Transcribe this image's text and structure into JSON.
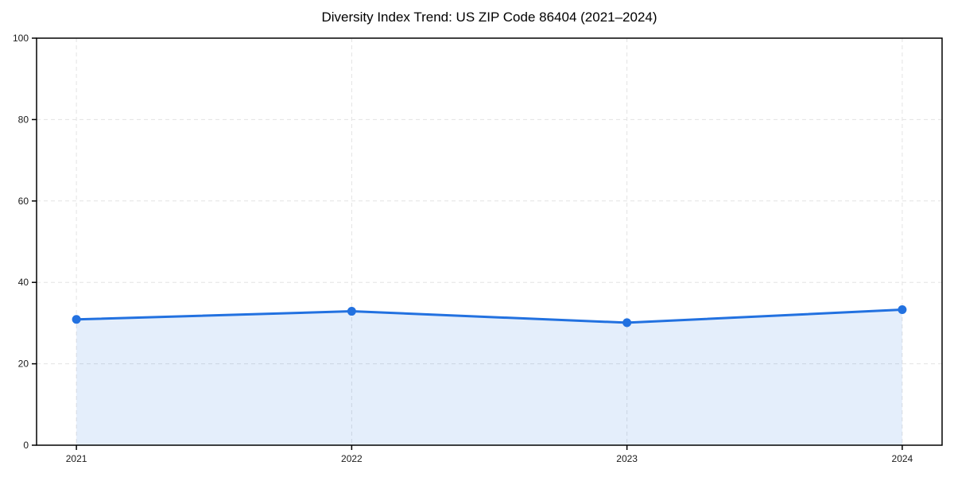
{
  "page": {
    "background": "#ffffff"
  },
  "chart_data": {
    "type": "area",
    "title": "Diversity Index Trend: US ZIP Code 86404 (2021–2024)",
    "categories": [
      "2021",
      "2022",
      "2023",
      "2024"
    ],
    "series": [
      {
        "name": "Diversity Index",
        "values": [
          30.9,
          32.9,
          30.1,
          33.3
        ]
      }
    ],
    "xlabel": "",
    "ylabel": "",
    "ylim": [
      0,
      100
    ],
    "yticks": [
      0,
      20,
      40,
      60,
      80,
      100
    ],
    "grid": true,
    "grid_style": "dashed",
    "legend_position": "none",
    "line_color": "#2271e0",
    "marker_color": "#2271e0",
    "fill_color": "rgba(34,113,224,0.12)",
    "grid_color": "#e3e3e3",
    "axis_color": "#000000",
    "text_color": "#1a1a1a",
    "marker": "circle"
  }
}
